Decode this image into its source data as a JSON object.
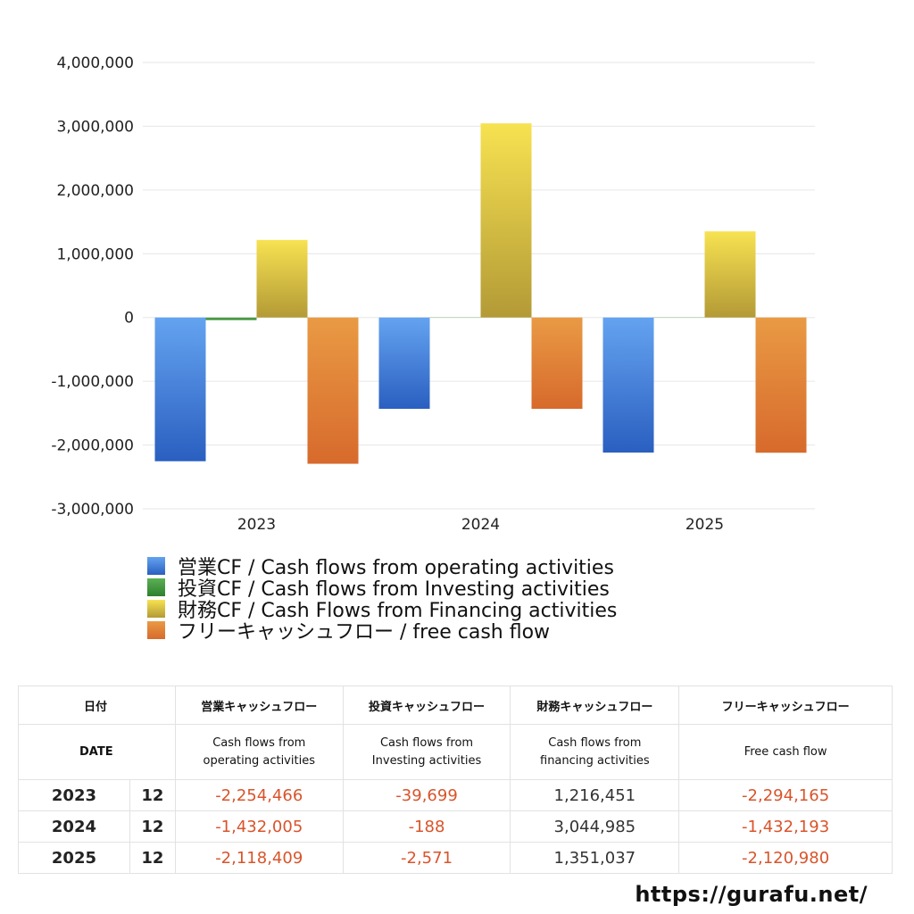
{
  "chart_data": {
    "type": "bar",
    "categories": [
      "2023",
      "2024",
      "2025"
    ],
    "ylim": [
      -3000000,
      4000000
    ],
    "yticks": [
      4000000,
      3000000,
      2000000,
      1000000,
      0,
      -1000000,
      -2000000,
      -3000000
    ],
    "ytick_labels": [
      "4,000,000",
      "3,000,000",
      "2,000,000",
      "1,000,000",
      "0",
      "-1,000,000",
      "-2,000,000",
      "-3,000,000"
    ],
    "grid": true,
    "legend_position": "bottom",
    "series": [
      {
        "name": "営業CF / Cash flows from operating activities",
        "values": [
          -2254466,
          -1432005,
          -2118409
        ],
        "color": "#3a78d8",
        "color_top": "#64a3f0",
        "color_bottom": "#2a5fc0"
      },
      {
        "name": "投資CF / Cash flows from Investing activities",
        "values": [
          -39699,
          -188,
          -2571
        ],
        "color": "#3e9a3a",
        "color_top": "#5cb055",
        "color_bottom": "#2f7f2c"
      },
      {
        "name": "財務CF / Cash Flows from Financing activities",
        "values": [
          1216451,
          3044985,
          1351037
        ],
        "color": "#e6c840",
        "color_top": "#f7e251",
        "color_bottom": "#b39a36"
      },
      {
        "name": "フリーキャッシュフロー / free cash flow",
        "values": [
          -2294165,
          -1432193,
          -2120980
        ],
        "color": "#e0863a",
        "color_top": "#e99a44",
        "color_bottom": "#d76a2c"
      }
    ]
  },
  "table": {
    "header": {
      "date": "日付",
      "operating": "営業キャッシュフロー",
      "investing": "投資キャッシュフロー",
      "financing": "財務キャッシュフロー",
      "free": "フリーキャッシュフロー"
    },
    "subheader": {
      "date": "DATE",
      "operating_1": "Cash flows from",
      "operating_2": "operating activities",
      "investing_1": "Cash flows from",
      "investing_2": "Investing activities",
      "financing_1": "Cash flows from",
      "financing_2": "financing activities",
      "free": "Free cash flow"
    },
    "rows": [
      {
        "year": "2023",
        "month": "12",
        "operating": "-2,254,466",
        "investing": "-39,699",
        "financing": "1,216,451",
        "free": "-2,294,165"
      },
      {
        "year": "2024",
        "month": "12",
        "operating": "-1,432,005",
        "investing": "-188",
        "financing": "3,044,985",
        "free": "-1,432,193"
      },
      {
        "year": "2025",
        "month": "12",
        "operating": "-2,118,409",
        "investing": "-2,571",
        "financing": "1,351,037",
        "free": "-2,120,980"
      }
    ]
  },
  "footer": {
    "url": "https://gurafu.net/"
  }
}
